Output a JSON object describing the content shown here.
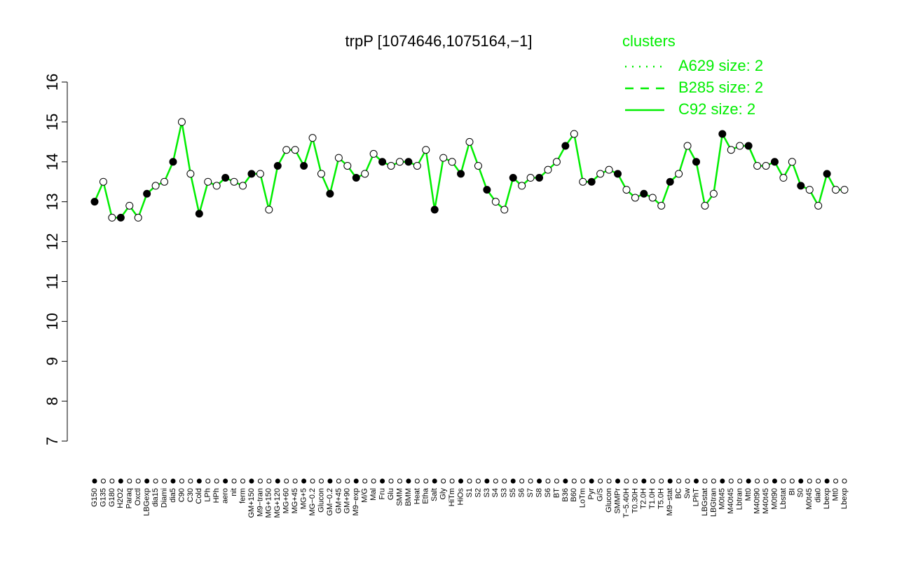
{
  "chart_data": {
    "type": "line",
    "title": "trpP [1074646,1075164,−1]",
    "categories": [
      "G150",
      "G135",
      "G180",
      "H2O2",
      "Paraq",
      "Oxctl",
      "LBGexp",
      "dia15",
      "Diami",
      "dia5",
      "C90",
      "C30",
      "Cold",
      "LPh",
      "HPh",
      "aero",
      "nit",
      "ferm",
      "GM+150",
      "M9−tran",
      "MG+150",
      "MG+120",
      "MG+60",
      "MG+45",
      "MG+5",
      "MG−0.2",
      "Glucon",
      "GM−0.2",
      "GM+45",
      "GM+90",
      "M9−exp",
      "M/G",
      "Mal",
      "Fru",
      "Glu",
      "SMM",
      "BMM",
      "Heat",
      "Etha",
      "Salt",
      "Gly",
      "HiTm",
      "HiOs",
      "S1",
      "S2",
      "S3",
      "S4",
      "S3",
      "S5",
      "S6",
      "S7",
      "S8",
      "S6",
      "BT",
      "B36",
      "B60",
      "LoTm",
      "Pyr",
      "G/S",
      "Glucon",
      "SMMPr",
      "T−5.40H",
      "T0.30H",
      "T2.0H",
      "T1.0H",
      "T5.0H",
      "M9−stat",
      "BC",
      "Sw",
      "LPhT",
      "LBGstat",
      "LBGtran",
      "M0t45",
      "M40t45",
      "Lbtran",
      "Mt0",
      "M40t90",
      "M40t45",
      "M0t90",
      "Lbstat",
      "BI",
      "S0",
      "M0t45",
      "dia0",
      "Lbexp",
      "Mt0",
      "Lbexp"
    ],
    "values": [
      13.0,
      13.5,
      12.6,
      12.6,
      12.9,
      12.6,
      13.2,
      13.4,
      13.5,
      14.0,
      15.0,
      13.7,
      12.7,
      13.5,
      13.4,
      13.6,
      13.5,
      13.4,
      13.7,
      13.7,
      12.8,
      13.9,
      14.3,
      14.3,
      13.9,
      14.6,
      13.7,
      13.2,
      14.1,
      13.9,
      13.6,
      13.7,
      14.2,
      14.0,
      13.9,
      14.0,
      14.0,
      13.9,
      14.3,
      12.8,
      14.1,
      14.0,
      13.7,
      14.5,
      13.9,
      13.3,
      13.0,
      12.8,
      13.6,
      13.4,
      13.6,
      13.6,
      13.8,
      14.0,
      14.4,
      14.7,
      13.5,
      13.5,
      13.7,
      13.8,
      13.7,
      13.3,
      13.1,
      13.2,
      13.1,
      12.9,
      13.5,
      13.7,
      14.4,
      14.0,
      12.9,
      13.2,
      14.7,
      14.3,
      14.4,
      14.4,
      13.9,
      13.9,
      14.0,
      13.6,
      14.0,
      13.4,
      13.3,
      12.9,
      13.7,
      13.3,
      13.3
    ],
    "color": "#00ee00",
    "ylim": [
      7,
      16
    ],
    "yticks": [
      7,
      8,
      9,
      10,
      11,
      12,
      13,
      14,
      15,
      16
    ],
    "legend": {
      "title": "clusters",
      "position": "top-right",
      "items": [
        {
          "name": "A629 size: 2",
          "dash": "dotted"
        },
        {
          "name": "B285 size: 2",
          "dash": "dashed"
        },
        {
          "name": "C92 size: 2",
          "dash": "solid"
        }
      ]
    }
  }
}
